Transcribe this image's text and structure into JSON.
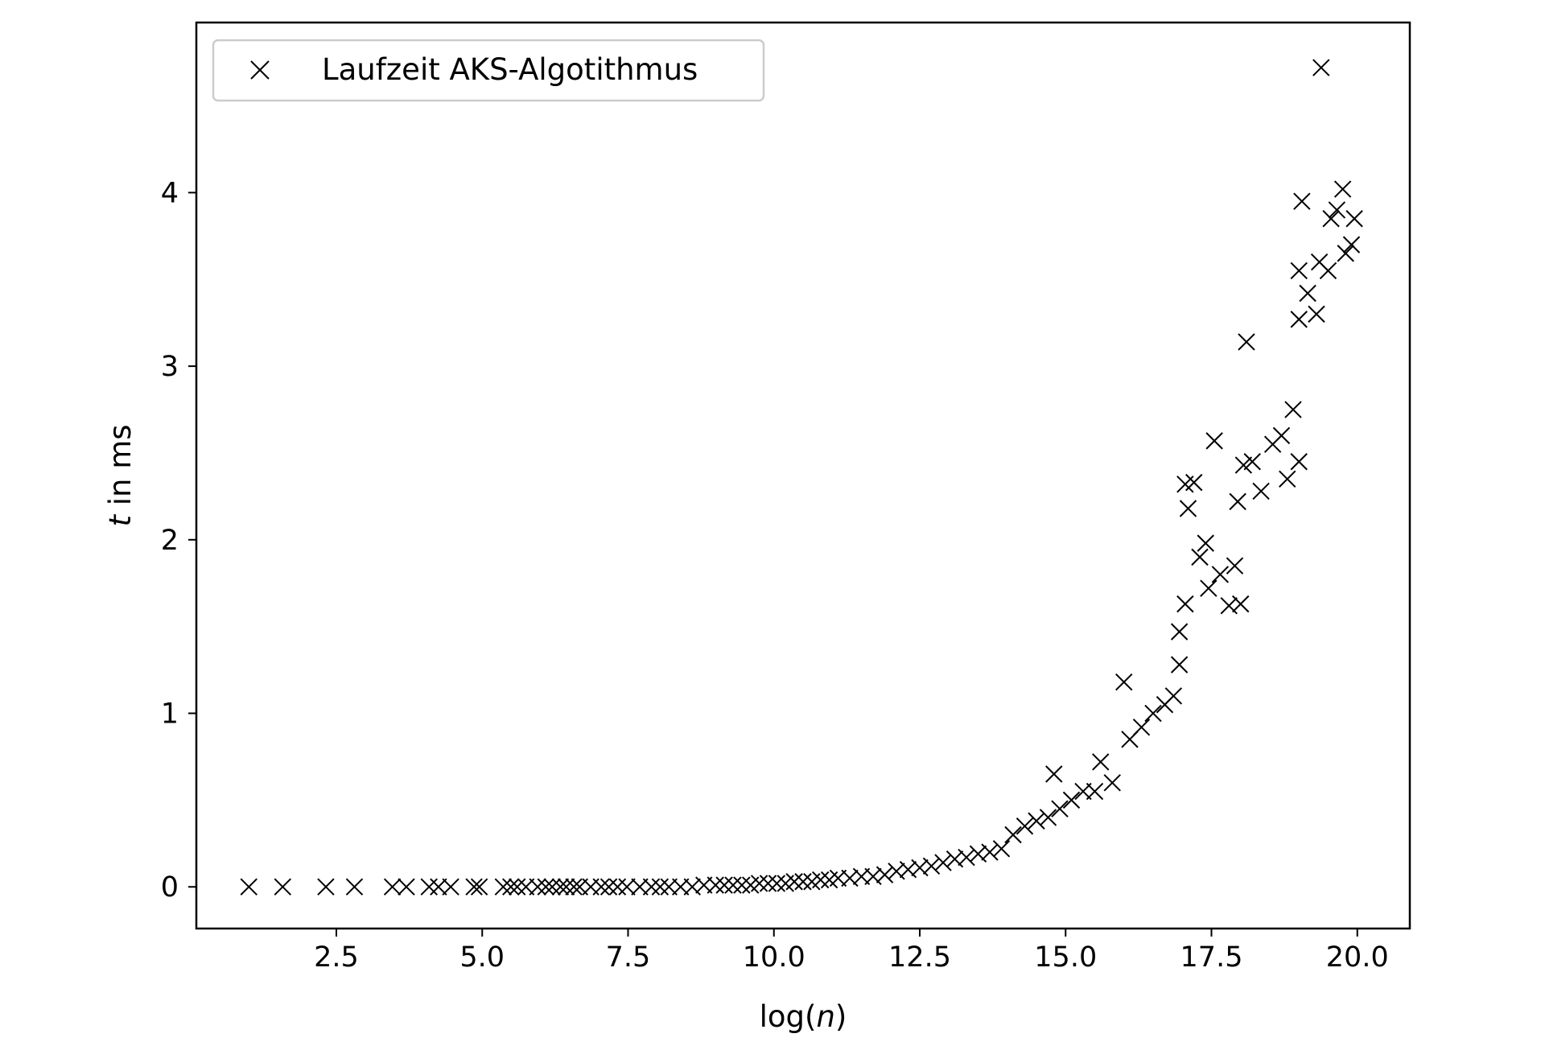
{
  "chart_data": {
    "type": "scatter",
    "title": "",
    "xlabel": {
      "prefix": "log(",
      "var": "n",
      "suffix": ")"
    },
    "ylabel": {
      "var": "t",
      "suffix": " in ms"
    },
    "xlim": [
      0.1,
      20.9
    ],
    "ylim": [
      -0.24,
      4.98
    ],
    "x_ticks": [
      2.5,
      5.0,
      7.5,
      10.0,
      12.5,
      15.0,
      17.5,
      20.0
    ],
    "x_tick_labels": [
      "2.5",
      "5.0",
      "7.5",
      "10.0",
      "12.5",
      "15.0",
      "17.5",
      "20.0"
    ],
    "y_ticks": [
      0,
      1,
      2,
      3,
      4
    ],
    "y_tick_labels": [
      "0",
      "1",
      "2",
      "3",
      "4"
    ],
    "grid": false,
    "legend_position": "top-left",
    "marker": "x",
    "marker_color": "#000000",
    "series": [
      {
        "name": "Laufzeit AKS-Algotithmus",
        "points": [
          [
            1.0,
            0.0
          ],
          [
            1.58,
            0.0
          ],
          [
            2.32,
            0.0
          ],
          [
            2.81,
            0.0
          ],
          [
            3.46,
            0.0
          ],
          [
            3.7,
            0.0
          ],
          [
            4.09,
            0.0
          ],
          [
            4.25,
            0.0
          ],
          [
            4.46,
            0.0
          ],
          [
            4.86,
            0.0
          ],
          [
            4.95,
            0.0
          ],
          [
            5.36,
            0.0
          ],
          [
            5.49,
            0.0
          ],
          [
            5.6,
            0.0
          ],
          [
            5.75,
            0.0
          ],
          [
            5.95,
            0.0
          ],
          [
            6.09,
            0.0
          ],
          [
            6.2,
            0.0
          ],
          [
            6.34,
            0.0
          ],
          [
            6.44,
            0.0
          ],
          [
            6.57,
            0.0
          ],
          [
            6.67,
            0.0
          ],
          [
            6.86,
            0.0
          ],
          [
            7.04,
            0.0
          ],
          [
            7.17,
            0.0
          ],
          [
            7.32,
            0.0
          ],
          [
            7.48,
            0.0
          ],
          [
            7.7,
            0.0
          ],
          [
            7.9,
            0.0
          ],
          [
            8.05,
            0.0
          ],
          [
            8.2,
            0.0
          ],
          [
            8.4,
            0.0
          ],
          [
            8.6,
            0.0
          ],
          [
            8.8,
            0.01
          ],
          [
            9.0,
            0.01
          ],
          [
            9.15,
            0.01
          ],
          [
            9.3,
            0.01
          ],
          [
            9.45,
            0.01
          ],
          [
            9.6,
            0.01
          ],
          [
            9.75,
            0.02
          ],
          [
            9.9,
            0.02
          ],
          [
            10.05,
            0.02
          ],
          [
            10.2,
            0.02
          ],
          [
            10.35,
            0.03
          ],
          [
            10.5,
            0.03
          ],
          [
            10.65,
            0.03
          ],
          [
            10.8,
            0.04
          ],
          [
            10.95,
            0.04
          ],
          [
            11.1,
            0.05
          ],
          [
            11.3,
            0.05
          ],
          [
            11.5,
            0.06
          ],
          [
            11.7,
            0.06
          ],
          [
            11.9,
            0.07
          ],
          [
            12.1,
            0.09
          ],
          [
            12.3,
            0.1
          ],
          [
            12.5,
            0.11
          ],
          [
            12.7,
            0.12
          ],
          [
            12.9,
            0.14
          ],
          [
            13.1,
            0.16
          ],
          [
            13.3,
            0.17
          ],
          [
            13.5,
            0.19
          ],
          [
            13.7,
            0.2
          ],
          [
            13.9,
            0.22
          ],
          [
            14.1,
            0.3
          ],
          [
            14.3,
            0.35
          ],
          [
            14.5,
            0.38
          ],
          [
            14.7,
            0.4
          ],
          [
            14.8,
            0.65
          ],
          [
            14.9,
            0.45
          ],
          [
            15.1,
            0.5
          ],
          [
            15.3,
            0.55
          ],
          [
            15.5,
            0.55
          ],
          [
            15.6,
            0.72
          ],
          [
            15.8,
            0.6
          ],
          [
            16.0,
            1.18
          ],
          [
            16.1,
            0.85
          ],
          [
            16.3,
            0.92
          ],
          [
            16.5,
            1.0
          ],
          [
            16.7,
            1.05
          ],
          [
            16.85,
            1.1
          ],
          [
            16.95,
            1.28
          ],
          [
            16.95,
            1.47
          ],
          [
            17.05,
            1.63
          ],
          [
            17.1,
            2.18
          ],
          [
            17.05,
            2.32
          ],
          [
            17.2,
            2.33
          ],
          [
            17.3,
            1.9
          ],
          [
            17.4,
            1.98
          ],
          [
            17.45,
            1.72
          ],
          [
            17.55,
            2.57
          ],
          [
            17.65,
            1.8
          ],
          [
            17.8,
            1.62
          ],
          [
            17.9,
            1.85
          ],
          [
            18.0,
            1.63
          ],
          [
            17.95,
            2.22
          ],
          [
            18.05,
            2.43
          ],
          [
            18.1,
            3.14
          ],
          [
            18.2,
            2.45
          ],
          [
            18.35,
            2.28
          ],
          [
            18.55,
            2.55
          ],
          [
            18.7,
            2.6
          ],
          [
            18.8,
            2.35
          ],
          [
            18.9,
            2.75
          ],
          [
            19.0,
            2.45
          ],
          [
            19.0,
            3.27
          ],
          [
            19.0,
            3.55
          ],
          [
            19.05,
            3.95
          ],
          [
            19.15,
            3.42
          ],
          [
            19.3,
            3.3
          ],
          [
            19.35,
            3.6
          ],
          [
            19.38,
            4.72
          ],
          [
            19.5,
            3.55
          ],
          [
            19.55,
            3.85
          ],
          [
            19.65,
            3.9
          ],
          [
            19.75,
            4.02
          ],
          [
            19.8,
            3.65
          ],
          [
            19.9,
            3.7
          ],
          [
            19.95,
            3.85
          ]
        ]
      }
    ]
  }
}
